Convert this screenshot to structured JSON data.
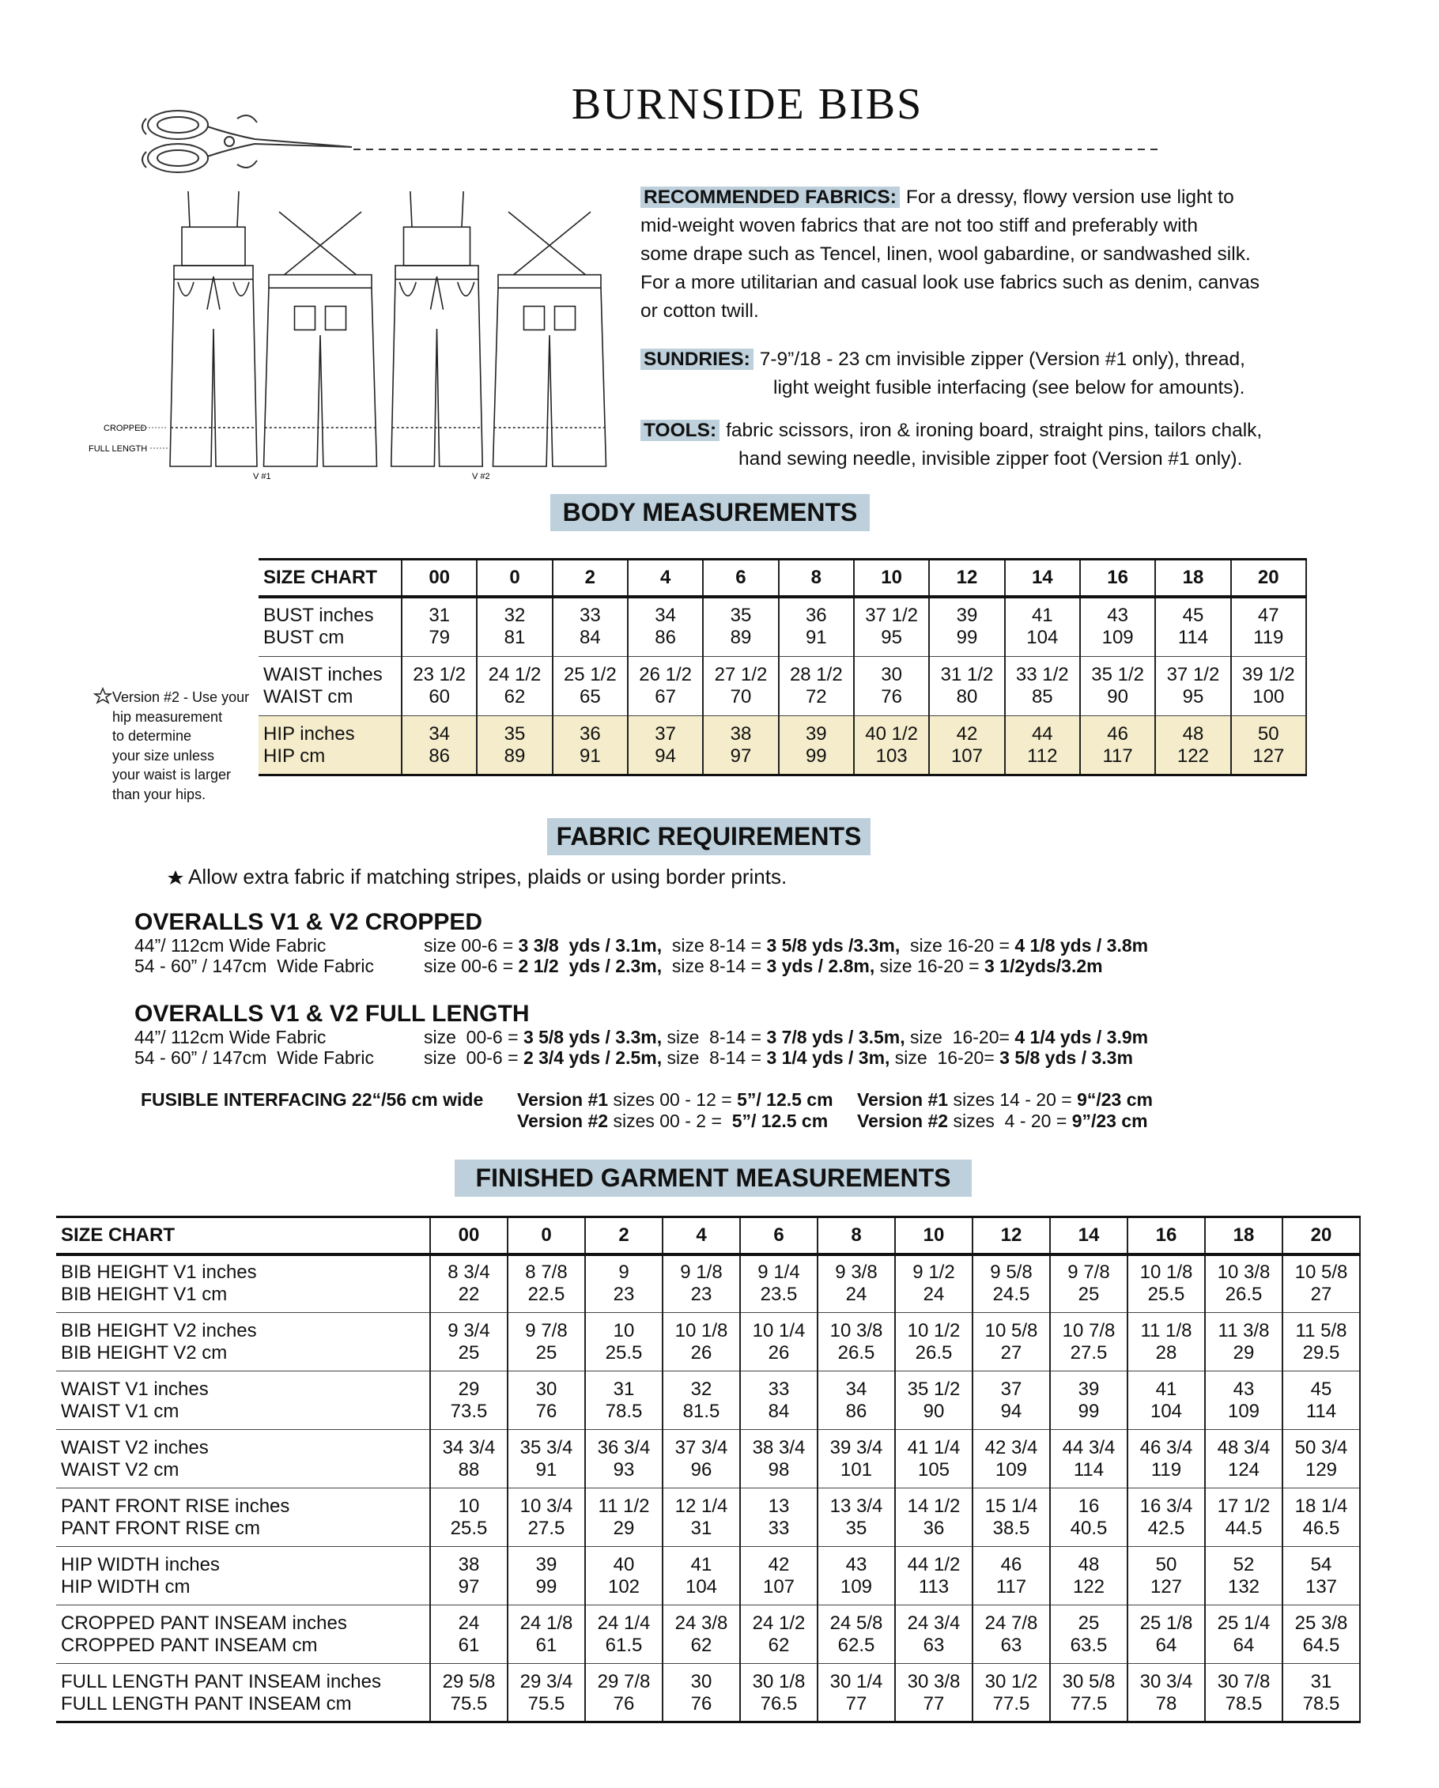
{
  "title": "BURNSIDE BIBS",
  "illustration": {
    "cropped": "CROPPED",
    "full_length": "FULL LENGTH",
    "v1": "V #1",
    "v2": "V #2"
  },
  "materials": [
    {
      "label": "RECOMMENDED FABRICS:",
      "lines": [
        "For a dressy, flowy version use light to",
        "mid-weight woven fabrics that are not too stiff and preferably with",
        "some drape such as Tencel, linen, wool gabardine, or sandwashed silk.",
        "For a more utilitarian and casual look use fabrics such as denim, canvas",
        "or cotton twill."
      ]
    },
    {
      "label": "SUNDRIES:",
      "lines": [
        "7-9”/18 - 23 cm invisible zipper (Version #1 only), thread,",
        "light weight fusible interfacing (see below for amounts)."
      ]
    },
    {
      "label": "TOOLS:",
      "lines": [
        "fabric scissors, iron & ironing board, straight pins, tailors chalk,",
        "hand sewing needle, invisible zipper foot (Version #1 only)."
      ]
    }
  ],
  "body_measurements": {
    "heading": "BODY MEASUREMENTS",
    "note": [
      "Version #2 - Use your",
      "hip measurement",
      "to determine",
      "your size unless",
      "your waist is larger",
      "than your hips."
    ],
    "header": [
      "SIZE CHART",
      "00",
      "0",
      "2",
      "4",
      "6",
      "8",
      "10",
      "12",
      "14",
      "16",
      "18",
      "20"
    ],
    "groups": [
      {
        "rows": [
          [
            "BUST inches",
            "31",
            "32",
            "33",
            "34",
            "35",
            "36",
            "37 1/2",
            "39",
            "41",
            "43",
            "45",
            "47"
          ],
          [
            "BUST cm",
            "79",
            "81",
            "84",
            "86",
            "89",
            "91",
            "95",
            "99",
            "104",
            "109",
            "114",
            "119"
          ]
        ]
      },
      {
        "rows": [
          [
            "WAIST inches",
            "23 1/2",
            "24 1/2",
            "25 1/2",
            "26 1/2",
            "27 1/2",
            "28 1/2",
            "30",
            "31 1/2",
            "33 1/2",
            "35 1/2",
            "37 1/2",
            "39 1/2"
          ],
          [
            "WAIST cm",
            "60",
            "62",
            "65",
            "67",
            "70",
            "72",
            "76",
            "80",
            "85",
            "90",
            "95",
            "100"
          ]
        ]
      },
      {
        "highlight": true,
        "rows": [
          [
            "HIP inches",
            "34",
            "35",
            "36",
            "37",
            "38",
            "39",
            "40 1/2",
            "42",
            "44",
            "46",
            "48",
            "50"
          ],
          [
            "HIP cm",
            "86",
            "89",
            "91",
            "94",
            "97",
            "99",
            "103",
            "107",
            "112",
            "117",
            "122",
            "127"
          ]
        ]
      }
    ]
  },
  "fabric_requirements": {
    "heading": "FABRIC REQUIREMENTS",
    "note": "Allow extra fabric if matching stripes, plaids or using border prints.",
    "sections": [
      {
        "title": "OVERALLS V1 & V2 CROPPED",
        "rows": [
          {
            "label": "44”/ 112cm Wide Fabric",
            "parts": [
              "size 00-6 = ",
              {
                "b": "3 3/8  yds / 3.1m,"
              },
              "  size 8-14 = ",
              {
                "b": "3 5/8 yds /3.3m,"
              },
              "  size 16-20 = ",
              {
                "b": "4 1/8 yds / 3.8m"
              }
            ]
          },
          {
            "label": "54 - 60” / 147cm  Wide Fabric",
            "parts": [
              "size 00-6 = ",
              {
                "b": "2 1/2  yds / 2.3m,"
              },
              "  size 8-14 = ",
              {
                "b": "3 yds / 2.8m,"
              },
              " size 16-20 = ",
              {
                "b": "3 1/2yds/3.2m"
              }
            ]
          }
        ]
      },
      {
        "title": "OVERALLS V1 & V2 FULL LENGTH",
        "rows": [
          {
            "label": "44”/ 112cm Wide Fabric",
            "parts": [
              "size  00-6 = ",
              {
                "b": "3 5/8 yds / 3.3m,"
              },
              " size  8-14 = ",
              {
                "b": "3 7/8 yds / 3.5m,"
              },
              " size  16-20= ",
              {
                "b": "4 1/4 yds / 3.9m"
              }
            ]
          },
          {
            "label": "54 - 60” / 147cm  Wide Fabric",
            "parts": [
              "size  00-6 = ",
              {
                "b": "2 3/4 yds / 2.5m,"
              },
              " size  8-14 = ",
              {
                "b": "3 1/4 yds / 3m,"
              },
              " size  16-20= ",
              {
                "b": "3 5/8 yds / 3.3m"
              }
            ]
          }
        ]
      }
    ],
    "interfacing": {
      "label": "FUSIBLE INTERFACING 22“/56 cm wide",
      "rows": [
        [
          [
            {
              "b": "Version #1"
            },
            " sizes 00 - 12 = ",
            {
              "b": "5”/ 12.5 cm"
            }
          ],
          [
            {
              "b": "Version #1"
            },
            " sizes 14 - 20 = ",
            {
              "b": "9“/23 cm"
            }
          ]
        ],
        [
          [
            {
              "b": "Version #2"
            },
            " sizes 00 - 2 =  ",
            {
              "b": "5”/ 12.5 cm"
            }
          ],
          [
            {
              "b": "Version #2"
            },
            " sizes  4 - 20 = ",
            {
              "b": "9”/23 cm"
            }
          ]
        ]
      ]
    }
  },
  "finished_measurements": {
    "heading": "FINISHED GARMENT MEASUREMENTS",
    "header": [
      "SIZE CHART",
      "00",
      "0",
      "2",
      "4",
      "6",
      "8",
      "10",
      "12",
      "14",
      "16",
      "18",
      "20"
    ],
    "groups": [
      {
        "rows": [
          [
            "BIB HEIGHT V1 inches",
            "8 3/4",
            "8 7/8",
            "9",
            "9 1/8",
            "9 1/4",
            "9 3/8",
            "9 1/2",
            "9 5/8",
            "9 7/8",
            "10 1/8",
            "10 3/8",
            "10 5/8"
          ],
          [
            "BIB HEIGHT V1 cm",
            "22",
            "22.5",
            "23",
            "23",
            "23.5",
            "24",
            "24",
            "24.5",
            "25",
            "25.5",
            "26.5",
            "27"
          ]
        ]
      },
      {
        "rows": [
          [
            "BIB HEIGHT V2 inches",
            "9 3/4",
            "9 7/8",
            "10",
            "10 1/8",
            "10 1/4",
            "10 3/8",
            "10 1/2",
            "10 5/8",
            "10 7/8",
            "11 1/8",
            "11 3/8",
            "11 5/8"
          ],
          [
            "BIB HEIGHT V2 cm",
            "25",
            "25",
            "25.5",
            "26",
            "26",
            "26.5",
            "26.5",
            "27",
            "27.5",
            "28",
            "29",
            "29.5"
          ]
        ]
      },
      {
        "rows": [
          [
            "WAIST V1  inches",
            "29",
            "30",
            "31",
            "32",
            "33",
            "34",
            "35 1/2",
            "37",
            "39",
            "41",
            "43",
            "45"
          ],
          [
            "WAIST V1  cm",
            "73.5",
            "76",
            "78.5",
            "81.5",
            "84",
            "86",
            "90",
            "94",
            "99",
            "104",
            "109",
            "114"
          ]
        ]
      },
      {
        "rows": [
          [
            "WAIST V2  inches",
            "34 3/4",
            "35 3/4",
            "36 3/4",
            "37 3/4",
            "38 3/4",
            "39 3/4",
            "41 1/4",
            "42 3/4",
            "44 3/4",
            "46 3/4",
            "48 3/4",
            "50 3/4"
          ],
          [
            "WAIST V2  cm",
            "88",
            "91",
            "93",
            "96",
            "98",
            "101",
            "105",
            "109",
            "114",
            "119",
            "124",
            "129"
          ]
        ]
      },
      {
        "rows": [
          [
            "PANT FRONT RISE inches",
            "10",
            "10 3/4",
            "11 1/2",
            "12 1/4",
            "13",
            "13 3/4",
            "14 1/2",
            "15 1/4",
            "16",
            "16 3/4",
            "17 1/2",
            "18 1/4"
          ],
          [
            "PANT FRONT RISE cm",
            "25.5",
            "27.5",
            "29",
            "31",
            "33",
            "35",
            "36",
            "38.5",
            "40.5",
            "42.5",
            "44.5",
            "46.5"
          ]
        ]
      },
      {
        "rows": [
          [
            "HIP WIDTH inches",
            "38",
            "39",
            "40",
            "41",
            "42",
            "43",
            "44 1/2",
            "46",
            "48",
            "50",
            "52",
            "54"
          ],
          [
            "HIP WIDTH cm",
            "97",
            "99",
            "102",
            "104",
            "107",
            "109",
            "113",
            "117",
            "122",
            "127",
            "132",
            "137"
          ]
        ]
      },
      {
        "rows": [
          [
            "CROPPED PANT INSEAM inches",
            "24",
            "24 1/8",
            "24 1/4",
            "24 3/8",
            "24 1/2",
            "24 5/8",
            "24 3/4",
            "24 7/8",
            "25",
            "25 1/8",
            "25 1/4",
            "25 3/8"
          ],
          [
            "CROPPED PANT INSEAM cm",
            "61",
            "61",
            "61.5",
            "62",
            "62",
            "62.5",
            "63",
            "63",
            "63.5",
            "64",
            "64",
            "64.5"
          ]
        ]
      },
      {
        "rows": [
          [
            "FULL LENGTH PANT INSEAM inches",
            "29 5/8",
            "29 3/4",
            "29 7/8",
            "30",
            "30 1/8",
            "30 1/4",
            "30 3/8",
            "30 1/2",
            "30 5/8",
            "30 3/4",
            "30 7/8",
            "31"
          ],
          [
            "FULL LENGTH PANT INSEAM cm",
            "75.5",
            "75.5",
            "76",
            "76",
            "76.5",
            "77",
            "77",
            "77.5",
            "77.5",
            "78",
            "78.5",
            "78.5"
          ]
        ]
      }
    ]
  }
}
